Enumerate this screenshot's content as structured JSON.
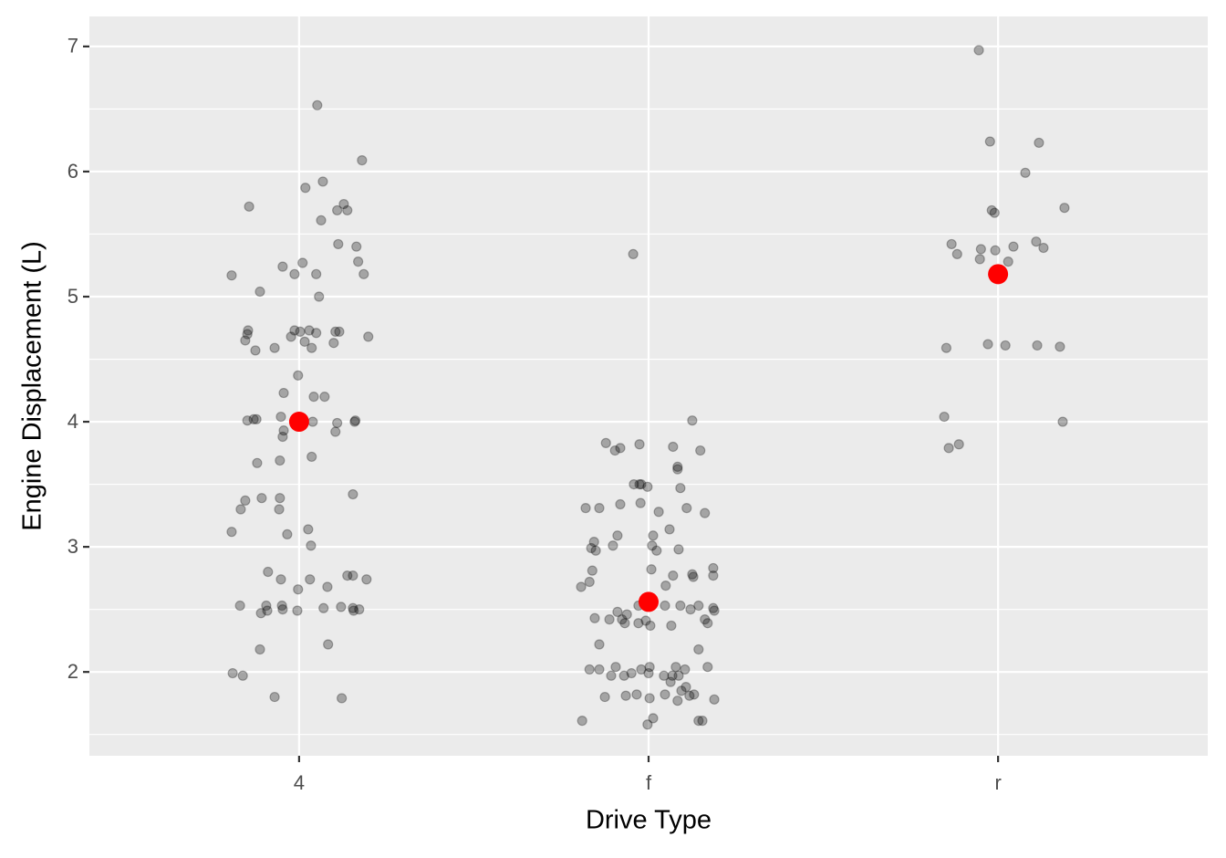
{
  "chart_data": {
    "type": "scatter",
    "xlabel": "Drive Type",
    "ylabel": "Engine Displacement (L)",
    "xlim": [
      0.4,
      3.6
    ],
    "ylim": [
      1.33,
      7.24
    ],
    "xticks": [
      {
        "value": 1,
        "label": "4"
      },
      {
        "value": 2,
        "label": "f"
      },
      {
        "value": 3,
        "label": "r"
      }
    ],
    "yticks": [
      2,
      3,
      4,
      5,
      6,
      7
    ],
    "grid": true,
    "background": "#ebebeb",
    "series": [
      {
        "color": "#000000",
        "opacity": 0.3,
        "x": [
          1.052,
          1.18,
          0.857,
          1.068,
          1.018,
          1.128,
          1.138,
          1.109,
          1.063,
          1.112,
          1.164,
          1.169,
          1.01,
          0.953,
          0.807,
          0.987,
          1.049,
          1.185,
          0.888,
          1.057,
          0.854,
          0.852,
          0.846,
          0.987,
          1.003,
          1.029,
          1.049,
          1.104,
          1.115,
          1.198,
          0.977,
          1.016,
          1.099,
          1.036,
          0.875,
          0.93,
          0.997,
          0.956,
          1.042,
          1.073,
          0.852,
          0.87,
          0.878,
          0.948,
          1.039,
          1.109,
          1.161,
          1.159,
          0.956,
          0.953,
          1.104,
          1.036,
          0.88,
          0.945,
          1.154,
          0.846,
          0.893,
          0.945,
          0.833,
          0.943,
          0.807,
          0.966,
          1.026,
          1.034,
          0.911,
          0.948,
          1.031,
          1.138,
          1.154,
          1.193,
          1.081,
          0.997,
          0.831,
          0.906,
          0.951,
          0.953,
          0.909,
          0.891,
          0.995,
          1.07,
          1.12,
          1.154,
          1.156,
          1.172,
          1.083,
          0.888,
          0.81,
          0.839,
          0.93,
          1.122,
          1.956,
          2.125,
          1.878,
          1.919,
          1.904,
          1.974,
          2.07,
          2.148,
          2.083,
          2.083,
          1.958,
          1.974,
          1.979,
          1.997,
          2.091,
          1.82,
          1.859,
          1.919,
          1.977,
          2.029,
          2.109,
          2.161,
          2.06,
          1.911,
          2.013,
          1.844,
          1.836,
          1.849,
          1.898,
          2.01,
          2.023,
          2.086,
          1.839,
          2.008,
          2.185,
          2.07,
          2.125,
          2.128,
          2.185,
          1.831,
          1.807,
          2.049,
          1.971,
          2.047,
          2.091,
          2.143,
          2.12,
          2.185,
          2.188,
          1.911,
          1.938,
          1.924,
          1.932,
          1.846,
          1.888,
          1.971,
          1.992,
          2.005,
          2.065,
          2.161,
          2.169,
          1.859,
          2.143,
          1.831,
          1.859,
          1.906,
          1.979,
          2.003,
          2.078,
          2.104,
          2.169,
          1.893,
          1.93,
          1.951,
          2.0,
          2.044,
          2.068,
          2.086,
          2.063,
          2.107,
          2.094,
          2.13,
          2.117,
          1.875,
          1.935,
          1.966,
          2.047,
          2.003,
          2.083,
          2.188,
          1.81,
          2.013,
          1.997,
          2.143,
          2.154,
          2.945,
          2.977,
          3.117,
          3.078,
          3.19,
          2.982,
          2.99,
          2.867,
          2.883,
          2.951,
          2.992,
          3.044,
          3.109,
          3.13,
          2.948,
          3.029,
          2.852,
          2.971,
          3.021,
          3.112,
          3.177,
          2.846,
          3.185,
          2.888,
          2.859
        ],
        "values": [
          6.53,
          6.09,
          5.72,
          5.92,
          5.87,
          5.74,
          5.69,
          5.69,
          5.61,
          5.42,
          5.4,
          5.28,
          5.27,
          5.24,
          5.17,
          5.18,
          5.18,
          5.18,
          5.04,
          5.0,
          4.73,
          4.7,
          4.65,
          4.73,
          4.72,
          4.73,
          4.71,
          4.72,
          4.72,
          4.68,
          4.68,
          4.64,
          4.63,
          4.59,
          4.57,
          4.59,
          4.37,
          4.23,
          4.2,
          4.2,
          4.01,
          4.02,
          4.02,
          4.04,
          4.0,
          3.99,
          4.01,
          4.0,
          3.93,
          3.88,
          3.92,
          3.72,
          3.67,
          3.69,
          3.42,
          3.37,
          3.39,
          3.39,
          3.3,
          3.3,
          3.12,
          3.1,
          3.14,
          3.01,
          2.8,
          2.74,
          2.74,
          2.77,
          2.77,
          2.74,
          2.68,
          2.66,
          2.53,
          2.53,
          2.53,
          2.5,
          2.49,
          2.47,
          2.49,
          2.51,
          2.52,
          2.51,
          2.49,
          2.5,
          2.22,
          2.18,
          1.99,
          1.97,
          1.8,
          1.79,
          5.34,
          4.01,
          3.83,
          3.79,
          3.77,
          3.82,
          3.8,
          3.77,
          3.64,
          3.62,
          3.5,
          3.5,
          3.5,
          3.48,
          3.47,
          3.31,
          3.31,
          3.34,
          3.35,
          3.28,
          3.31,
          3.27,
          3.14,
          3.09,
          3.09,
          3.04,
          2.99,
          2.97,
          3.01,
          3.01,
          2.97,
          2.98,
          2.81,
          2.82,
          2.83,
          2.77,
          2.78,
          2.76,
          2.77,
          2.72,
          2.68,
          2.69,
          2.53,
          2.53,
          2.53,
          2.53,
          2.5,
          2.51,
          2.49,
          2.48,
          2.46,
          2.42,
          2.39,
          2.43,
          2.42,
          2.39,
          2.41,
          2.37,
          2.37,
          2.42,
          2.39,
          2.22,
          2.18,
          2.02,
          2.02,
          2.04,
          2.02,
          2.04,
          2.04,
          2.02,
          2.04,
          1.97,
          1.97,
          1.99,
          1.99,
          1.97,
          1.97,
          1.97,
          1.92,
          1.88,
          1.85,
          1.82,
          1.81,
          1.8,
          1.81,
          1.82,
          1.82,
          1.79,
          1.77,
          1.78,
          1.61,
          1.63,
          1.58,
          1.61,
          1.61,
          6.97,
          6.24,
          6.23,
          5.99,
          5.71,
          5.69,
          5.67,
          5.42,
          5.34,
          5.38,
          5.37,
          5.4,
          5.44,
          5.39,
          5.3,
          5.28,
          4.59,
          4.62,
          4.61,
          4.61,
          4.6,
          4.04,
          4.0,
          3.82,
          3.79
        ]
      },
      {
        "color": "#ff0000",
        "opacity": 1,
        "x": [
          1,
          2,
          3
        ],
        "values": [
          4.0,
          2.56,
          5.18
        ]
      }
    ]
  }
}
